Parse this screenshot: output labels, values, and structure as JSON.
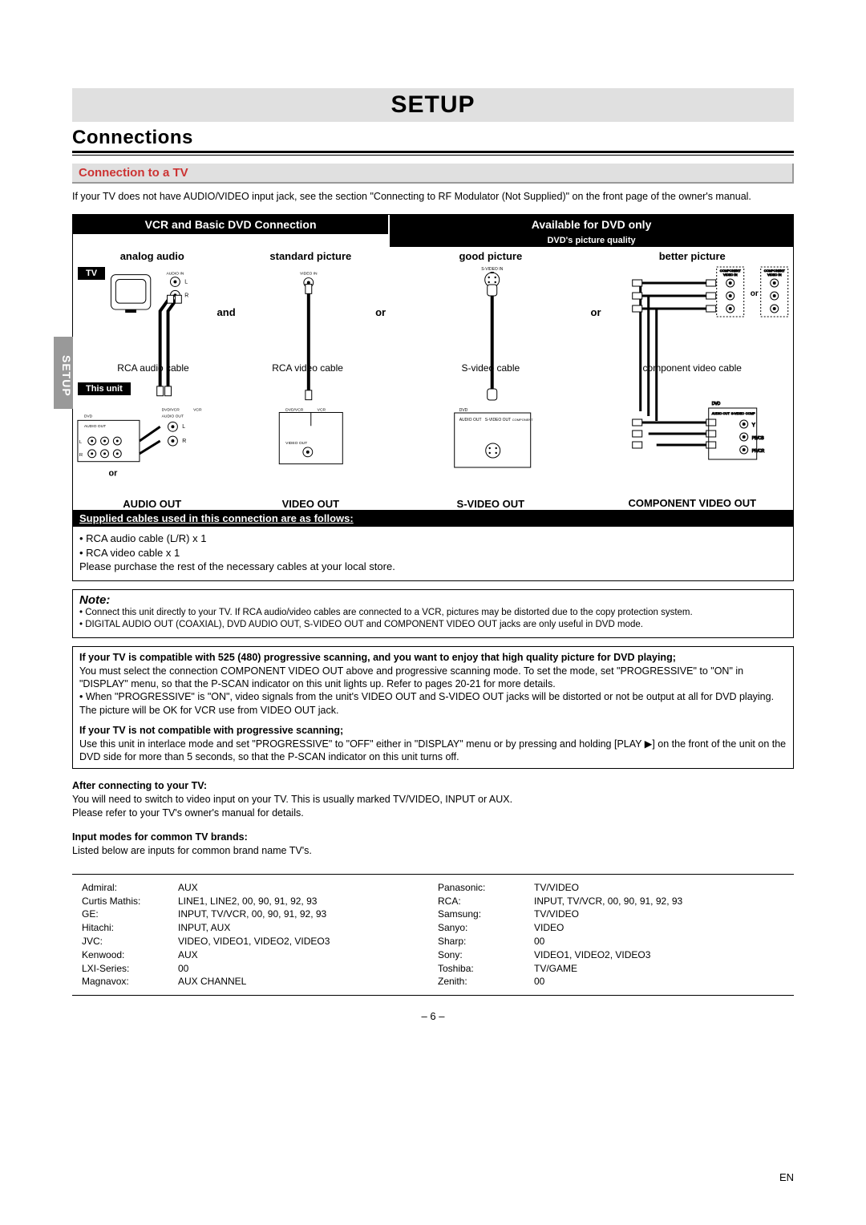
{
  "page": {
    "title": "SETUP",
    "section": "Connections",
    "subsection": "Connection to a TV",
    "intro": "If your TV does not have AUDIO/VIDEO input jack, see the section \"Connecting to RF Modulator (Not Supplied)\" on the front page of the owner's manual.",
    "sideTab": "SETUP",
    "pageNumber": "– 6 –",
    "language": "EN"
  },
  "diagram": {
    "bar1": "VCR and Basic DVD Connection",
    "bar2": "Available for DVD only",
    "qualityBar": "DVD's picture quality",
    "cols": [
      "analog audio",
      "standard picture",
      "good picture",
      "better picture"
    ],
    "tvLabel": "TV",
    "unitLabel": "This unit",
    "cableLabels": [
      "RCA audio cable",
      "RCA video cable",
      "S-video cable",
      "component video cable"
    ],
    "andOr": {
      "and": "and",
      "or": "or",
      "or2": "or",
      "orSmall": "or"
    },
    "outs": [
      "AUDIO OUT",
      "VIDEO OUT",
      "S-VIDEO OUT",
      "COMPONENT VIDEO OUT"
    ],
    "jackTiny": {
      "audioIn": "AUDIO IN",
      "videoIn": "VIDEO IN",
      "svideoIn": "S-VIDEO IN",
      "compIn": "COMPONENT VIDEO IN",
      "L": "L",
      "R": "R",
      "Y": "Y",
      "Pb": "PB/CB",
      "Pr": "PR/CR",
      "dvd": "DVD",
      "vcr": "VCR",
      "dvdvcr": "DVD/VCR",
      "audioOut": "AUDIO OUT",
      "videoOut": "VIDEO OUT",
      "svideoOut": "S-VIDEO OUT",
      "compOut": "COMPONENT VIDEO OUT"
    }
  },
  "supplied": {
    "header": "Supplied cables used in this connection are as follows:",
    "line1": "• RCA audio cable (L/R) x 1",
    "line2": "• RCA video cable x 1",
    "line3": "Please purchase the rest of the necessary cables at your local store."
  },
  "note": {
    "title": "Note:",
    "line1": "• Connect this unit directly to your TV. If RCA audio/video cables are connected to a VCR, pictures may be distorted due to the copy protection system.",
    "line2": "• DIGITAL AUDIO OUT (COAXIAL), DVD AUDIO OUT, S-VIDEO OUT and COMPONENT VIDEO OUT jacks are only useful in DVD mode."
  },
  "progressive": {
    "head1": "If your TV is compatible with 525 (480) progressive scanning, and you want to enjoy that high quality picture for DVD playing;",
    "body1": "You must select the connection COMPONENT VIDEO OUT above and progressive scanning mode. To set the mode, set \"PROGRESSIVE\" to \"ON\" in \"DISPLAY\" menu, so that the P-SCAN indicator on this unit lights up. Refer to pages 20-21 for more details.\n• When \"PROGRESSIVE\" is \"ON\", video signals from the unit's VIDEO OUT and S-VIDEO OUT jacks will be distorted or not be output at all for DVD playing. The picture will be OK for VCR use from VIDEO OUT jack.",
    "head2": "If your TV is not compatible with progressive scanning;",
    "body2": "Use this unit in interlace mode and set \"PROGRESSIVE\" to \"OFF\" either in \"DISPLAY\" menu or by pressing and holding [PLAY ▶] on the front of the unit on the DVD side for more than 5 seconds, so that the P-SCAN indicator on this unit turns off."
  },
  "after": {
    "head": "After connecting to your TV:",
    "body": "You will need to switch to video input on your TV. This is usually marked TV/VIDEO, INPUT or AUX.\nPlease refer to your TV's owner's manual for details.",
    "head2": "Input modes for common TV brands:",
    "body2": "Listed below are inputs for common brand name TV's."
  },
  "brands": {
    "left": [
      {
        "name": "Admiral:",
        "input": "AUX"
      },
      {
        "name": "Curtis Mathis:",
        "input": "LINE1, LINE2, 00, 90, 91, 92, 93"
      },
      {
        "name": "GE:",
        "input": "INPUT, TV/VCR, 00, 90, 91, 92, 93"
      },
      {
        "name": "Hitachi:",
        "input": "INPUT, AUX"
      },
      {
        "name": "JVC:",
        "input": "VIDEO, VIDEO1, VIDEO2, VIDEO3"
      },
      {
        "name": "Kenwood:",
        "input": "AUX"
      },
      {
        "name": "LXI-Series:",
        "input": "00"
      },
      {
        "name": "Magnavox:",
        "input": "AUX CHANNEL"
      }
    ],
    "right": [
      {
        "name": "Panasonic:",
        "input": "TV/VIDEO"
      },
      {
        "name": "RCA:",
        "input": "INPUT, TV/VCR, 00, 90, 91, 92, 93"
      },
      {
        "name": "Samsung:",
        "input": "TV/VIDEO"
      },
      {
        "name": "Sanyo:",
        "input": "VIDEO"
      },
      {
        "name": "Sharp:",
        "input": "00"
      },
      {
        "name": "Sony:",
        "input": "VIDEO1, VIDEO2, VIDEO3"
      },
      {
        "name": "Toshiba:",
        "input": "TV/GAME"
      },
      {
        "name": "Zenith:",
        "input": "00"
      }
    ]
  }
}
